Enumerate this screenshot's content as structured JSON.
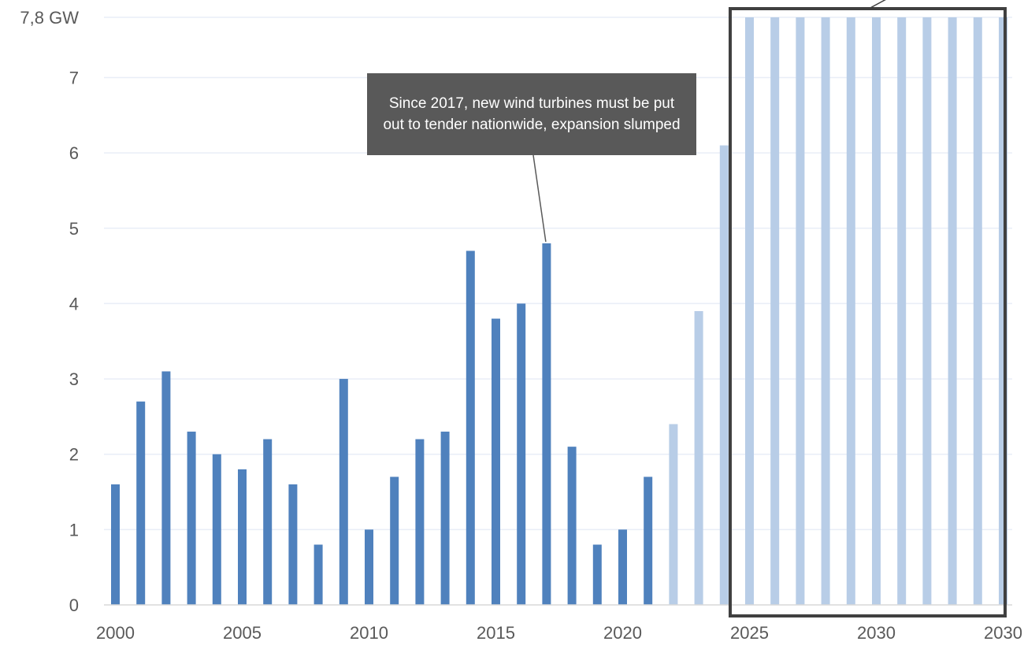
{
  "chart_data": {
    "type": "bar",
    "title": "",
    "xlabel": "",
    "ylabel": "",
    "unit": "GW",
    "ylim": [
      0,
      7.8
    ],
    "yticks": [
      {
        "value": 0,
        "label": "0"
      },
      {
        "value": 1,
        "label": "1"
      },
      {
        "value": 2,
        "label": "2"
      },
      {
        "value": 3,
        "label": "3"
      },
      {
        "value": 4,
        "label": "4"
      },
      {
        "value": 5,
        "label": "5"
      },
      {
        "value": 6,
        "label": "6"
      },
      {
        "value": 7,
        "label": "7"
      },
      {
        "value": 7.8,
        "label": "7,8 GW"
      }
    ],
    "xtick_labels": [
      "2000",
      "2005",
      "2010",
      "2015",
      "2020",
      "2025",
      "2030",
      "2030"
    ],
    "grid": true,
    "legend": "none",
    "series": [
      {
        "values": [
          {
            "x": 2000,
            "y": 1.6
          },
          {
            "x": 2001,
            "y": 2.7
          },
          {
            "x": 2002,
            "y": 3.1
          },
          {
            "x": 2003,
            "y": 2.3
          },
          {
            "x": 2004,
            "y": 2.0
          },
          {
            "x": 2005,
            "y": 1.8
          },
          {
            "x": 2006,
            "y": 2.2
          },
          {
            "x": 2007,
            "y": 1.6
          },
          {
            "x": 2008,
            "y": 0.8
          },
          {
            "x": 2009,
            "y": 3.0
          },
          {
            "x": 2010,
            "y": 1.0
          },
          {
            "x": 2011,
            "y": 1.7
          },
          {
            "x": 2012,
            "y": 2.2
          },
          {
            "x": 2013,
            "y": 2.3
          },
          {
            "x": 2014,
            "y": 4.7
          },
          {
            "x": 2015,
            "y": 3.8
          },
          {
            "x": 2016,
            "y": 4.0
          },
          {
            "x": 2017,
            "y": 4.8
          },
          {
            "x": 2018,
            "y": 2.1
          },
          {
            "x": 2019,
            "y": 0.8
          },
          {
            "x": 2020,
            "y": 1.0
          },
          {
            "x": 2021,
            "y": 1.7
          }
        ],
        "color": "#4f81bd"
      },
      {
        "values": [
          {
            "x": 2022,
            "y": 2.4
          },
          {
            "x": 2023,
            "y": 3.9
          },
          {
            "x": 2024,
            "y": 6.1
          },
          {
            "x": 2025,
            "y": 7.8
          },
          {
            "x": 2026,
            "y": 7.8
          },
          {
            "x": 2027,
            "y": 7.8
          },
          {
            "x": 2028,
            "y": 7.8
          },
          {
            "x": 2029,
            "y": 7.8
          },
          {
            "x": 2030,
            "y": 7.8
          },
          {
            "x": 2031,
            "y": 7.8
          },
          {
            "x": 2032,
            "y": 7.8
          },
          {
            "x": 2033,
            "y": 7.8
          },
          {
            "x": 2034,
            "y": 7.8
          },
          {
            "x": 2035,
            "y": 7.8
          }
        ],
        "color": "#b8cde7"
      }
    ],
    "annotations": [
      {
        "text": "Since 2017, new wind turbines must be put out to tender nationwide, expansion slumped",
        "points_to_x": 2017
      }
    ],
    "highlight_box": {
      "from_x": 2025,
      "to_x": 2035,
      "color": "#404040"
    }
  },
  "colors": {
    "grid": "#e9eef7",
    "axis": "#d9d9d9",
    "tick_text": "#595959",
    "callout_bg": "#595959",
    "callout_text": "#ffffff"
  }
}
